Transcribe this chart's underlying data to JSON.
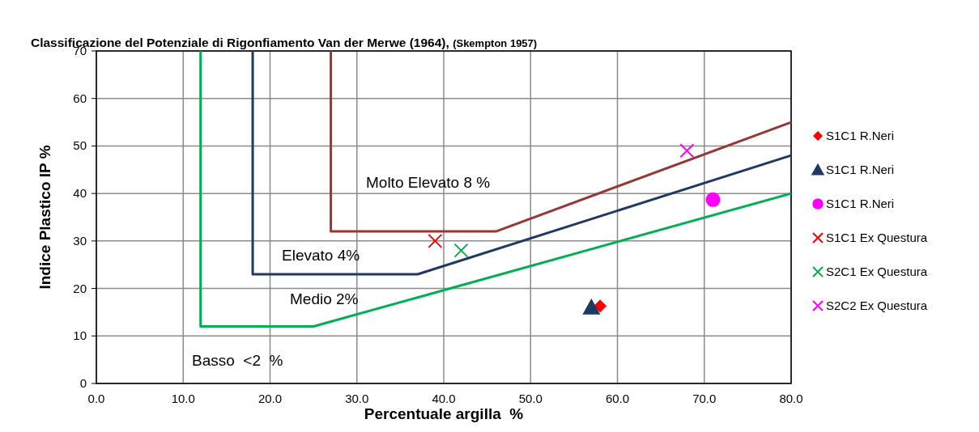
{
  "chart_data": {
    "type": "scatter",
    "title": "Classificazione del Potenziale di Rigonfiamento Van der Merwe (1964), ",
    "subtitle": "(Skempton 1957)",
    "xlabel": "Percentuale argilla  %",
    "ylabel": "Indice Plastico IP %",
    "xlim": [
      0,
      80
    ],
    "ylim": [
      0,
      70
    ],
    "xticks": [
      {
        "value": 0,
        "label": "0.0"
      },
      {
        "value": 10,
        "label": "10.0"
      },
      {
        "value": 20,
        "label": "20.0"
      },
      {
        "value": 30,
        "label": "30.0"
      },
      {
        "value": 40,
        "label": "40.0"
      },
      {
        "value": 50,
        "label": "50.0"
      },
      {
        "value": 60,
        "label": "60.0"
      },
      {
        "value": 70,
        "label": "70.0"
      },
      {
        "value": 80,
        "label": "80.0"
      }
    ],
    "yticks": [
      0,
      10,
      20,
      30,
      40,
      50,
      60,
      70
    ],
    "grid": true,
    "legend": "right",
    "series": [
      {
        "type": "line",
        "color": "#00b050",
        "x": [
          12,
          12,
          25,
          80
        ],
        "values": [
          70,
          12,
          12,
          40
        ],
        "marker": "none"
      },
      {
        "type": "line",
        "color": "#1f3864",
        "x": [
          18,
          18,
          37,
          80
        ],
        "values": [
          70,
          23,
          23,
          48
        ],
        "marker": "none"
      },
      {
        "type": "line",
        "color": "#953735",
        "x": [
          27,
          27,
          46,
          80
        ],
        "values": [
          70,
          32,
          32,
          55
        ],
        "marker": "none"
      },
      {
        "name": "S1C1 R.Neri",
        "color": "#ff0000",
        "marker": "diamond",
        "x": [
          58
        ],
        "values": [
          16.3
        ]
      },
      {
        "name": "S1C1 R.Neri",
        "color": "#1f3864",
        "marker": "triangle",
        "x": [
          57
        ],
        "values": [
          16
        ]
      },
      {
        "name": "S1C1 R.Neri",
        "color": "#ff00ff",
        "marker": "circle",
        "x": [
          71
        ],
        "values": [
          38.7
        ]
      },
      {
        "name": "S1C1 Ex Questura",
        "color": "#ff0000",
        "marker": "cross",
        "x": [
          39
        ],
        "values": [
          30
        ]
      },
      {
        "name": "S2C1 Ex Questura",
        "color": "#00b050",
        "marker": "cross",
        "x": [
          42
        ],
        "values": [
          28
        ]
      },
      {
        "name": "S2C2 Ex Questura",
        "color": "#ff00ff",
        "marker": "cross",
        "x": [
          68
        ],
        "values": [
          49
        ]
      }
    ],
    "annotations": [
      "Molto Elevato 8 %",
      "Elevato 4%",
      "Medio 2%",
      "Basso  <2  %"
    ]
  }
}
